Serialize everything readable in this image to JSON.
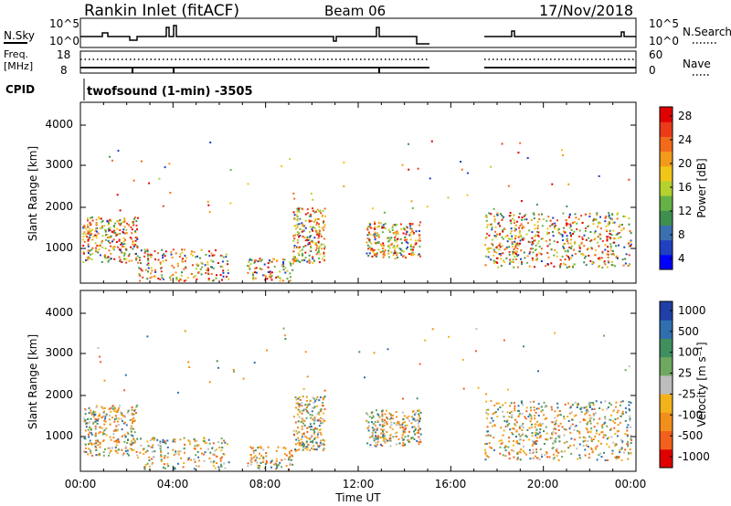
{
  "header": {
    "station": "Rankin Inlet (fitACF)",
    "beam": "Beam 06",
    "date": "17/Nov/2018"
  },
  "status_panels": {
    "nsky_label": "N.Sky",
    "nsky_ticks": [
      "10^5",
      "10^0"
    ],
    "nsearch_label": "N.Search",
    "nsearch_ticks": [
      "10^5",
      "10^0"
    ],
    "freq_label_1": "Freq.",
    "freq_label_2": "[MHz]",
    "freq_ticks": [
      "18",
      "8"
    ],
    "nave_label": "Nave",
    "nave_ticks": [
      "60",
      "0"
    ],
    "cpid_label": "CPID",
    "cpid_text": "twofsound (1-min) -3505"
  },
  "chart_data": [
    {
      "type": "heatmap",
      "name": "power",
      "ylabel": "Slant Range [km]",
      "ylim": [
        180,
        4500
      ],
      "yticks": [
        "4000",
        "3000",
        "2000",
        "1000"
      ],
      "colorbar_label": "Power [dB]",
      "colorbar_ticks": [
        "28",
        "24",
        "20",
        "16",
        "12",
        "8",
        "4"
      ],
      "colorbar_colors": [
        "#0000ff",
        "#2040c0",
        "#3a70b0",
        "#3f8f4f",
        "#64b246",
        "#b4d22e",
        "#f2c619",
        "#f29b1b",
        "#f26b1b",
        "#ea3a1a",
        "#e00000"
      ]
    },
    {
      "type": "heatmap",
      "name": "velocity",
      "ylabel": "Slant Range [km]",
      "ylim": [
        180,
        4500
      ],
      "yticks": [
        "4000",
        "3000",
        "2000",
        "1000"
      ],
      "colorbar_label": "Velocity [m s⁻¹]",
      "colorbar_ticks": [
        "1000",
        "500",
        "100",
        "25",
        "-25",
        "-100",
        "-500",
        "-1000"
      ],
      "colorbar_colors": [
        "#1f3fa6",
        "#2f6fae",
        "#3f8f5f",
        "#6fa85f",
        "#bdbdbd",
        "#f2b21b",
        "#f28f1b",
        "#f2601b",
        "#e00000"
      ]
    }
  ],
  "x_axis": {
    "ticks": [
      "00:00",
      "04:00",
      "08:00",
      "12:00",
      "16:00",
      "20:00",
      "00:00"
    ],
    "label": "Time UT"
  }
}
